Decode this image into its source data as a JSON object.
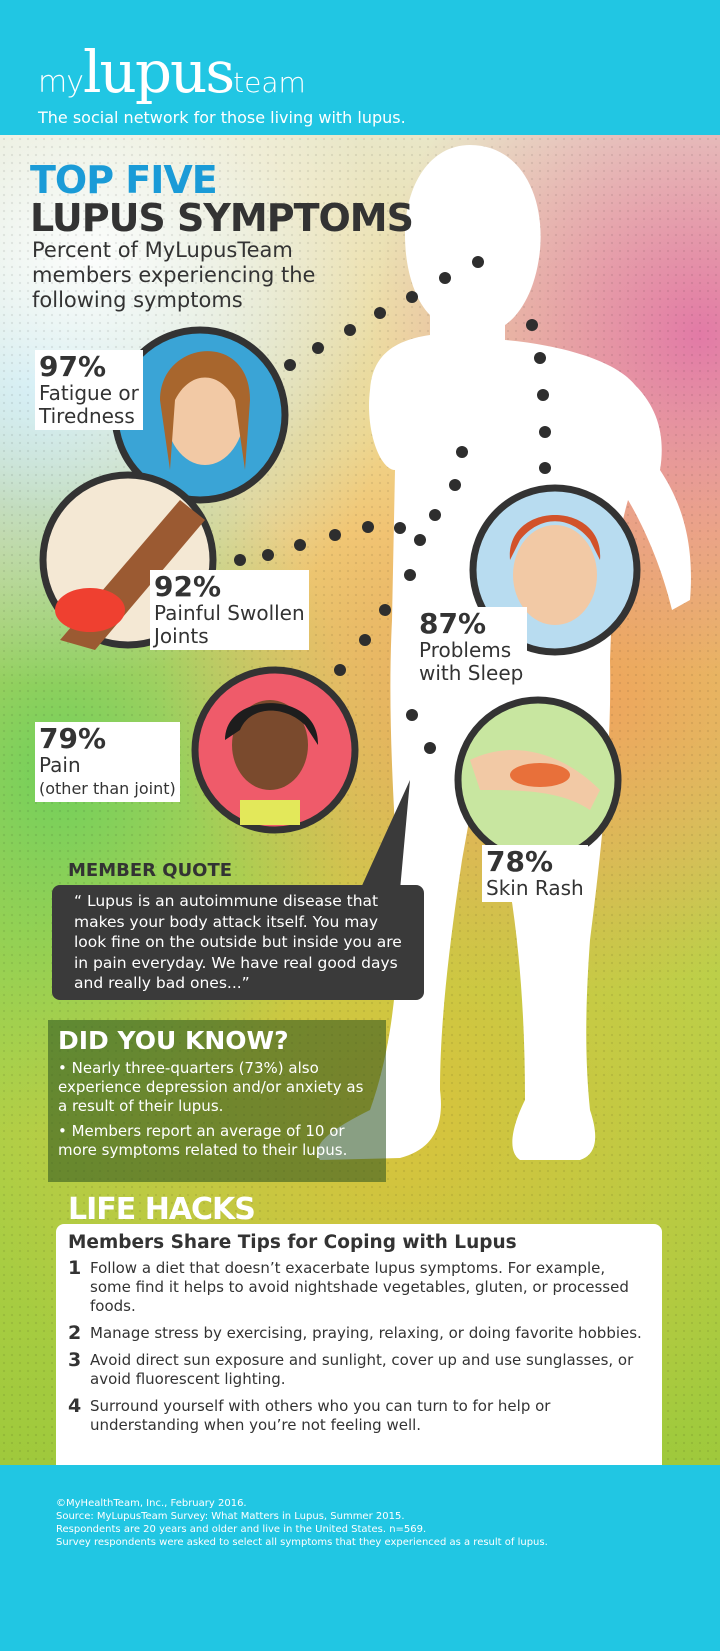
{
  "header": {
    "logo": {
      "my": "my",
      "lupus": "lupus",
      "team": "team"
    },
    "tagline": "The social network for those living with lupus."
  },
  "title": {
    "line1": "TOP FIVE",
    "line2": "LUPUS SYMPTOMS",
    "subtitle": "Percent of MyLupusTeam members experiencing the following symptoms"
  },
  "symptoms": [
    {
      "percent": "97%",
      "label_lines": [
        "Fatigue or",
        "Tiredness"
      ]
    },
    {
      "percent": "92%",
      "label_lines": [
        "Painful Swollen",
        "Joints"
      ]
    },
    {
      "percent": "87%",
      "label_lines": [
        "Problems",
        "with Sleep"
      ]
    },
    {
      "percent": "79%",
      "label_lines": [
        "Pain",
        "(other than joint)"
      ]
    },
    {
      "percent": "78%",
      "label_lines": [
        "Skin Rash"
      ]
    }
  ],
  "quote": {
    "heading": "MEMBER QUOTE",
    "text": "“ Lupus is an autoimmune disease that makes your body attack itself. You may look fine on the outside but inside you are in pain everyday. We have real good days and really bad ones...”"
  },
  "did_you_know": {
    "heading": "DID YOU KNOW?",
    "items": [
      "• Nearly three-quarters (73%) also experience depression and/or anxiety as a result of their lupus.",
      "• Members report an average of 10 or more symptoms related to their lupus."
    ]
  },
  "life_hacks": {
    "heading": "LIFE HACKS",
    "subheading": "Members Share Tips for Coping with Lupus",
    "tips": [
      {
        "n": "1",
        "text": "Follow a diet that doesn’t exacerbate lupus symptoms. For example, some find it helps to avoid nightshade vegetables, gluten, or processed foods."
      },
      {
        "n": "2",
        "text": "Manage stress by exercising, praying, relaxing, or doing favorite hobbies."
      },
      {
        "n": "3",
        "text": "Avoid direct sun exposure and sunlight, cover up and use sunglasses, or avoid fluorescent lighting."
      },
      {
        "n": "4",
        "text": "Surround yourself with others who you can turn to for help or understanding when you’re not feeling well."
      }
    ]
  },
  "footer": {
    "lines": [
      "©MyHealthTeam, Inc., February 2016.",
      "Source: MyLupusTeam Survey: What Matters in Lupus, Summer 2015.",
      "Respondents are 20 years and older and live in the United States. n=569.",
      "Survey respondents were asked to select all symptoms that they experienced as a result of lupus."
    ]
  },
  "colors": {
    "brand_cyan": "#21c6e3",
    "title_blue": "#1a9bd7",
    "dark_text": "#333333",
    "quote_box": "#3a3a3a"
  }
}
